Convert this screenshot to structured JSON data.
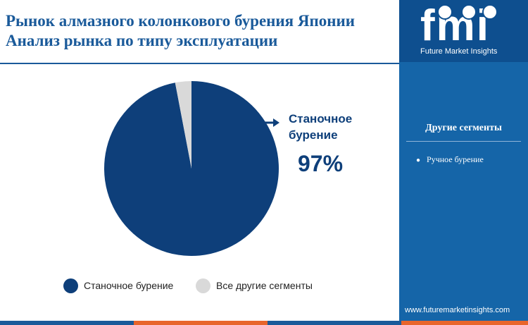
{
  "title": {
    "line1": "Рынок алмазного колонкового бурения Японии",
    "line2": "Анализ рынка по типу эксплуатации"
  },
  "chart_data": {
    "type": "pie",
    "slices": [
      {
        "label": "Станочное бурение",
        "value": 97,
        "color": "#0e3f7a"
      },
      {
        "label": "Все другие сегменты",
        "value": 3,
        "color": "#d9d9d9"
      }
    ],
    "callout": {
      "label_line1": "Станочное",
      "label_line2": "бурение",
      "value_text": "97%"
    },
    "legend": [
      "Станочное бурение",
      "Все другие сегменты"
    ],
    "legend_placement": "bottom"
  },
  "sidebar": {
    "logo_text": "fmi",
    "logo_subtitle": "Future Market Insights",
    "segments_title": "Другие сегменты",
    "segments": [
      "Ручное бурение"
    ],
    "website": "www.futuremarketinsights.com"
  },
  "colors": {
    "title": "#1a5a9a",
    "sidebar": "#1565a8",
    "primary_slice": "#0e3f7a",
    "secondary_slice": "#d9d9d9",
    "bottom_bar": [
      "#1a5a9a",
      "#e8652b",
      "#1a5a9a",
      "#e8652b"
    ]
  }
}
